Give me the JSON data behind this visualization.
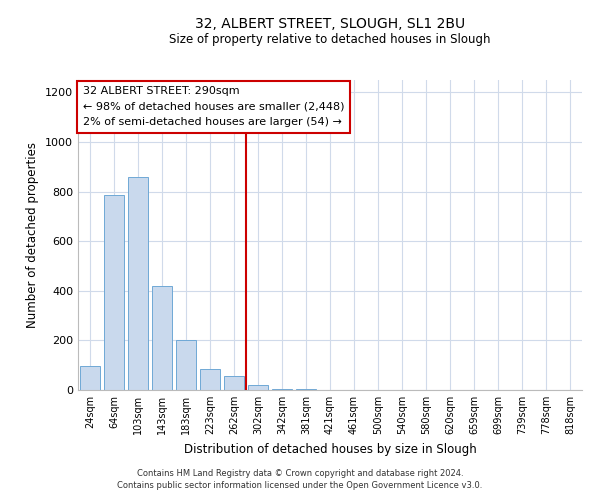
{
  "title": "32, ALBERT STREET, SLOUGH, SL1 2BU",
  "subtitle": "Size of property relative to detached houses in Slough",
  "xlabel": "Distribution of detached houses by size in Slough",
  "ylabel": "Number of detached properties",
  "bar_labels": [
    "24sqm",
    "64sqm",
    "103sqm",
    "143sqm",
    "183sqm",
    "223sqm",
    "262sqm",
    "302sqm",
    "342sqm",
    "381sqm",
    "421sqm",
    "461sqm",
    "500sqm",
    "540sqm",
    "580sqm",
    "620sqm",
    "659sqm",
    "699sqm",
    "739sqm",
    "778sqm",
    "818sqm"
  ],
  "bar_values": [
    95,
    785,
    860,
    420,
    200,
    85,
    55,
    20,
    5,
    3,
    1,
    0,
    0,
    1,
    0,
    1,
    0,
    0,
    0,
    0,
    1
  ],
  "bar_color": "#c9d9ed",
  "bar_edge_color": "#6fa8d6",
  "vline_color": "#cc0000",
  "ylim": [
    0,
    1250
  ],
  "yticks": [
    0,
    200,
    400,
    600,
    800,
    1000,
    1200
  ],
  "annotation_title": "32 ALBERT STREET: 290sqm",
  "annotation_line1": "← 98% of detached houses are smaller (2,448)",
  "annotation_line2": "2% of semi-detached houses are larger (54) →",
  "annotation_box_color": "#ffffff",
  "annotation_box_edge": "#cc0000",
  "footer_line1": "Contains HM Land Registry data © Crown copyright and database right 2024.",
  "footer_line2": "Contains public sector information licensed under the Open Government Licence v3.0.",
  "background_color": "#ffffff",
  "grid_color": "#d0daea"
}
